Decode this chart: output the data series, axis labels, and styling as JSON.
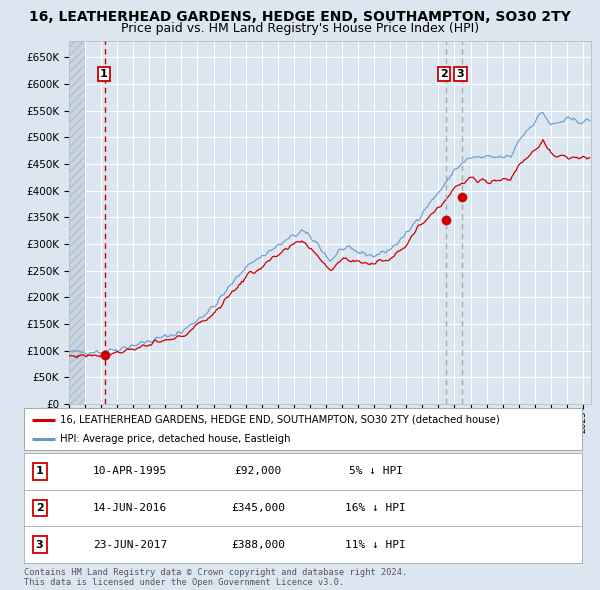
{
  "title": "16, LEATHERHEAD GARDENS, HEDGE END, SOUTHAMPTON, SO30 2TY",
  "subtitle": "Price paid vs. HM Land Registry's House Price Index (HPI)",
  "legend_line1": "16, LEATHERHEAD GARDENS, HEDGE END, SOUTHAMPTON, SO30 2TY (detached house)",
  "legend_line2": "HPI: Average price, detached house, Eastleigh",
  "transactions": [
    {
      "num": 1,
      "date": "10-APR-1995",
      "price": 92000,
      "pct": "5%",
      "dir": "↓"
    },
    {
      "num": 2,
      "date": "14-JUN-2016",
      "price": 345000,
      "pct": "16%",
      "dir": "↓"
    },
    {
      "num": 3,
      "date": "23-JUN-2017",
      "price": 388000,
      "pct": "11%",
      "dir": "↓"
    }
  ],
  "t1_date_num": 1995.27,
  "t2_date_num": 2016.45,
  "t3_date_num": 2017.48,
  "t1_val": 92000,
  "t2_val": 345000,
  "t3_val": 388000,
  "xmin": 1993.0,
  "xmax": 2025.5,
  "ylim": [
    0,
    680000
  ],
  "yticks": [
    0,
    50000,
    100000,
    150000,
    200000,
    250000,
    300000,
    350000,
    400000,
    450000,
    500000,
    550000,
    600000,
    650000
  ],
  "background_color": "#dce6f1",
  "plot_bg_color": "#dce6f1",
  "grid_color": "#ffffff",
  "red_line_color": "#cc0000",
  "blue_line_color": "#6699cc",
  "dot_color": "#cc0000",
  "vline1_color": "#cc0000",
  "vline23_color": "#aaaaaa",
  "footer": "Contains HM Land Registry data © Crown copyright and database right 2024.\nThis data is licensed under the Open Government Licence v3.0.",
  "title_fontsize": 10,
  "subtitle_fontsize": 9,
  "hpi_waypoints_x": [
    1993.0,
    1995.0,
    1996.0,
    1998.0,
    2000.0,
    2002.0,
    2004.0,
    2007.5,
    2008.5,
    2009.25,
    2010.0,
    2012.0,
    2013.0,
    2014.0,
    2015.0,
    2016.5,
    2017.0,
    2018.0,
    2019.0,
    2020.5,
    2021.0,
    2022.5,
    2023.0,
    2024.0,
    2025.0
  ],
  "hpi_waypoints_y": [
    97000,
    99000,
    103000,
    118000,
    135000,
    182000,
    258000,
    325000,
    300000,
    268000,
    292000,
    278000,
    290000,
    318000,
    360000,
    415000,
    440000,
    462000,
    462000,
    463000,
    495000,
    548000,
    522000,
    533000,
    530000
  ],
  "pp_waypoints_x": [
    1993.0,
    1995.0,
    1996.0,
    1998.0,
    2000.0,
    2002.0,
    2004.0,
    2007.5,
    2008.5,
    2009.25,
    2010.0,
    2012.0,
    2013.0,
    2014.0,
    2015.0,
    2016.5,
    2017.0,
    2018.0,
    2019.0,
    2020.5,
    2021.0,
    2022.5,
    2023.0,
    2024.0,
    2025.0
  ],
  "pp_waypoints_y": [
    90000,
    93000,
    97000,
    111000,
    126000,
    170000,
    238000,
    308000,
    278000,
    252000,
    272000,
    263000,
    274000,
    300000,
    340000,
    385000,
    405000,
    422000,
    418000,
    422000,
    448000,
    492000,
    468000,
    462000,
    462000
  ]
}
